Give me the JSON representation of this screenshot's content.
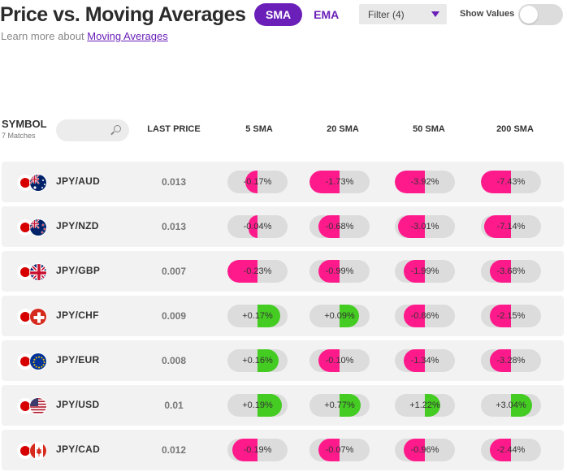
{
  "header": {
    "title": "Price vs. Moving Averages",
    "learn_prefix": "Learn more about ",
    "learn_link": "Moving Averages",
    "seg_sma": "SMA",
    "seg_ema": "EMA",
    "active_segment": "SMA",
    "filter_label": "Filter (4)",
    "show_values_label": "Show Values",
    "show_values_on": false
  },
  "colors": {
    "accent": "#6a1fb8",
    "negative": "#ff1a8c",
    "positive": "#44cc22",
    "row_bg": "#f2f2f2",
    "pill_bg": "#dcdcdc"
  },
  "table": {
    "symbol_header": "SYMBOL",
    "matches": "7 Matches",
    "search_icon": "search-icon",
    "columns": [
      "LAST PRICE",
      "5 SMA",
      "20 SMA",
      "50 SMA",
      "200 SMA"
    ],
    "rows": [
      {
        "pair": "JPY/AUD",
        "flag": "australia-flag-icon",
        "price": "0.013",
        "sma": [
          "-0.17%",
          "-1.73%",
          "-3.92%",
          "-7.43%"
        ],
        "level": [
          0.4,
          1.0,
          1.0,
          1.0
        ]
      },
      {
        "pair": "JPY/NZD",
        "flag": "new-zealand-flag-icon",
        "price": "0.013",
        "sma": [
          "-0.04%",
          "-0.68%",
          "-3.01%",
          "-7.14%"
        ],
        "level": [
          0.3,
          0.7,
          0.9,
          0.9
        ]
      },
      {
        "pair": "JPY/GBP",
        "flag": "uk-flag-icon",
        "price": "0.007",
        "sma": [
          "-0.23%",
          "-0.99%",
          "-1.99%",
          "-3.68%"
        ],
        "level": [
          1.0,
          0.7,
          0.7,
          0.7
        ]
      },
      {
        "pair": "JPY/CHF",
        "flag": "swiss-flag-icon",
        "price": "0.009",
        "sma": [
          "+0.17%",
          "+0.09%",
          "-0.86%",
          "-2.15%"
        ],
        "level": [
          0.75,
          0.65,
          0.7,
          0.7
        ]
      },
      {
        "pair": "JPY/EUR",
        "flag": "eu-flag-icon",
        "price": "0.008",
        "sma": [
          "+0.16%",
          "-0.10%",
          "-1.34%",
          "-3.28%"
        ],
        "level": [
          0.7,
          0.7,
          0.7,
          0.7
        ]
      },
      {
        "pair": "JPY/USD",
        "flag": "us-flag-icon",
        "price": "0.01",
        "sma": [
          "+0.19%",
          "+0.77%",
          "+1.22%",
          "+3.04%"
        ],
        "level": [
          0.8,
          0.7,
          0.5,
          0.7
        ]
      },
      {
        "pair": "JPY/CAD",
        "flag": "canada-flag-icon",
        "price": "0.012",
        "sma": [
          "-0.19%",
          "-0.07%",
          "-0.96%",
          "-2.44%"
        ],
        "level": [
          0.85,
          0.7,
          0.7,
          0.7
        ]
      }
    ]
  }
}
